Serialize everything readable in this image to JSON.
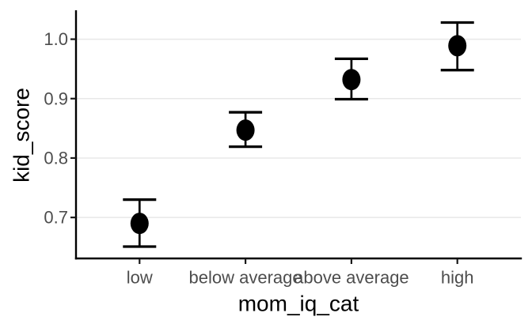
{
  "figure": {
    "background": "#ffffff",
    "x_axis_title": "mom_iq_cat",
    "y_axis_title": "kid_score"
  },
  "chart_data": {
    "type": "scatter",
    "subtype": "point-estimate-with-error-bars",
    "title": "",
    "xlabel": "mom_iq_cat",
    "ylabel": "kid_score",
    "categories": [
      "low",
      "below average",
      "above average",
      "high"
    ],
    "series": [
      {
        "name": "kid_score",
        "values": [
          0.69,
          0.847,
          0.932,
          0.989
        ],
        "ymin": [
          0.651,
          0.819,
          0.899,
          0.948
        ],
        "ymax": [
          0.73,
          0.877,
          0.967,
          1.028
        ]
      }
    ],
    "yticks": [
      0.7,
      0.8,
      0.9,
      1.0
    ],
    "ytick_labels": [
      "0.7",
      "0.8",
      "0.9",
      "1.0"
    ],
    "xtick_labels": [
      "low",
      "below average",
      "above average",
      "high"
    ],
    "ylim": [
      0.631,
      1.046
    ],
    "grid": "horizontal-major-only",
    "legend": "none",
    "colors": {
      "point": "#000000",
      "error_bar": "#000000",
      "grid_line": "#e8e8e8",
      "axis_line": "#000000",
      "tick_mark": "#1a1a1a",
      "tick_label": "#4d4d4d",
      "axis_title": "#000000",
      "background": "#ffffff"
    }
  }
}
